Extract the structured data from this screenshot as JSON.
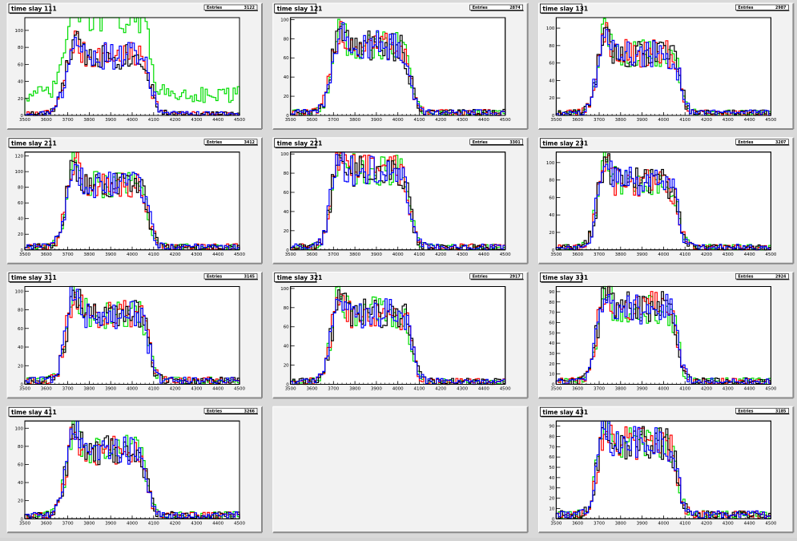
{
  "canvas": {
    "background": "#d9d9d9",
    "pad_color": "#f2f2f2",
    "grid_cols": 3,
    "grid_rows": 4
  },
  "series_colors": [
    "#ff0000",
    "#00dd00",
    "#000000",
    "#0000ff"
  ],
  "stats_label": "Entries",
  "chart_data": [
    {
      "type": "histogram",
      "title": "time slay 111",
      "entries": "3122",
      "xlim": [
        3500,
        4500
      ],
      "ylim": [
        0,
        115
      ],
      "xticks": [
        3500,
        3600,
        3700,
        3800,
        3900,
        4000,
        4100,
        4200,
        4300,
        4400,
        4500
      ],
      "yticks": [
        0,
        20,
        40,
        60,
        80,
        100
      ],
      "shape": {
        "rise": 3680,
        "riseW": 70,
        "fall": 4090,
        "fallW": 60,
        "peak": 92,
        "lvl": 68,
        "tail": 2,
        "green_bg": 22,
        "green_boost": 1.35
      }
    },
    {
      "type": "histogram",
      "title": "time slay 121",
      "entries": "2874",
      "xlim": [
        3500,
        4500
      ],
      "ylim": [
        0,
        102
      ],
      "xticks": [
        3500,
        3600,
        3700,
        3800,
        3900,
        4000,
        4100,
        4200,
        4300,
        4400,
        4500
      ],
      "yticks": [
        0,
        20,
        40,
        60,
        80,
        100
      ],
      "shape": {
        "rise": 3680,
        "riseW": 60,
        "fall": 4060,
        "fallW": 60,
        "peak": 90,
        "lvl": 70,
        "tail": 3
      }
    },
    {
      "type": "histogram",
      "title": "time slay 131",
      "entries": "2987",
      "xlim": [
        3500,
        4500
      ],
      "ylim": [
        0,
        112
      ],
      "xticks": [
        3500,
        3600,
        3700,
        3800,
        3900,
        4000,
        4100,
        4200,
        4300,
        4400,
        4500
      ],
      "yticks": [
        0,
        20,
        40,
        60,
        80,
        100
      ],
      "shape": {
        "rise": 3680,
        "riseW": 60,
        "fall": 4080,
        "fallW": 60,
        "peak": 100,
        "lvl": 68,
        "tail": 3
      }
    },
    {
      "type": "histogram",
      "title": "time slay 211",
      "entries": "3412",
      "xlim": [
        3500,
        4500
      ],
      "ylim": [
        0,
        125
      ],
      "xticks": [
        3500,
        3600,
        3700,
        3800,
        3900,
        4000,
        4100,
        4200,
        4300,
        4400,
        4500
      ],
      "yticks": [
        0,
        20,
        40,
        60,
        80,
        100,
        120
      ],
      "shape": {
        "rise": 3680,
        "riseW": 60,
        "fall": 4080,
        "fallW": 60,
        "peak": 112,
        "lvl": 80,
        "tail": 4
      }
    },
    {
      "type": "histogram",
      "title": "time slay 221",
      "entries": "3301",
      "xlim": [
        3500,
        4500
      ],
      "ylim": [
        0,
        102
      ],
      "xticks": [
        3500,
        3600,
        3700,
        3800,
        3900,
        4000,
        4100,
        4200,
        4300,
        4400,
        4500
      ],
      "yticks": [
        0,
        20,
        40,
        60,
        80,
        100
      ],
      "shape": {
        "rise": 3680,
        "riseW": 60,
        "fall": 4060,
        "fallW": 60,
        "peak": 98,
        "lvl": 80,
        "tail": 3
      }
    },
    {
      "type": "histogram",
      "title": "time slay 231",
      "entries": "3207",
      "xlim": [
        3500,
        4500
      ],
      "ylim": [
        0,
        112
      ],
      "xticks": [
        3500,
        3600,
        3700,
        3800,
        3900,
        4000,
        4100,
        4200,
        4300,
        4400,
        4500
      ],
      "yticks": [
        0,
        20,
        40,
        60,
        80,
        100
      ],
      "shape": {
        "rise": 3680,
        "riseW": 60,
        "fall": 4070,
        "fallW": 60,
        "peak": 105,
        "lvl": 75,
        "tail": 3
      }
    },
    {
      "type": "histogram",
      "title": "time slay 311",
      "entries": "3145",
      "xlim": [
        3500,
        4500
      ],
      "ylim": [
        0,
        105
      ],
      "xticks": [
        3500,
        3600,
        3700,
        3800,
        3900,
        4000,
        4100,
        4200,
        4300,
        4400,
        4500
      ],
      "yticks": [
        0,
        20,
        40,
        60,
        80,
        100
      ],
      "shape": {
        "rise": 3680,
        "riseW": 60,
        "fall": 4080,
        "fallW": 60,
        "peak": 98,
        "lvl": 72,
        "tail": 4
      }
    },
    {
      "type": "histogram",
      "title": "time slay 321",
      "entries": "2917",
      "xlim": [
        3500,
        4500
      ],
      "ylim": [
        0,
        102
      ],
      "xticks": [
        3500,
        3600,
        3700,
        3800,
        3900,
        4000,
        4100,
        4200,
        4300,
        4400,
        4500
      ],
      "yticks": [
        0,
        20,
        40,
        60,
        80,
        100
      ],
      "shape": {
        "rise": 3680,
        "riseW": 60,
        "fall": 4070,
        "fallW": 60,
        "peak": 96,
        "lvl": 72,
        "tail": 3
      }
    },
    {
      "type": "histogram",
      "title": "time slay 331",
      "entries": "2924",
      "xlim": [
        3500,
        4500
      ],
      "ylim": [
        0,
        95
      ],
      "xticks": [
        3500,
        3600,
        3700,
        3800,
        3900,
        4000,
        4100,
        4200,
        4300,
        4400,
        4500
      ],
      "yticks": [
        0,
        10,
        20,
        30,
        40,
        50,
        60,
        70,
        80,
        90
      ],
      "shape": {
        "rise": 3680,
        "riseW": 60,
        "fall": 4070,
        "fallW": 60,
        "peak": 90,
        "lvl": 72,
        "tail": 3
      }
    },
    {
      "type": "histogram",
      "title": "time slay 411",
      "entries": "3266",
      "xlim": [
        3500,
        4500
      ],
      "ylim": [
        0,
        108
      ],
      "xticks": [
        3500,
        3600,
        3700,
        3800,
        3900,
        4000,
        4100,
        4200,
        4300,
        4400,
        4500
      ],
      "yticks": [
        0,
        20,
        40,
        60,
        80,
        100
      ],
      "shape": {
        "rise": 3680,
        "riseW": 60,
        "fall": 4070,
        "fallW": 60,
        "peak": 100,
        "lvl": 72,
        "tail": 4
      }
    },
    null,
    {
      "type": "histogram",
      "title": "time slay 431",
      "entries": "3185",
      "xlim": [
        3500,
        4500
      ],
      "ylim": [
        0,
        95
      ],
      "xticks": [
        3500,
        3600,
        3700,
        3800,
        3900,
        4000,
        4100,
        4200,
        4300,
        4400,
        4500
      ],
      "yticks": [
        0,
        10,
        20,
        30,
        40,
        50,
        60,
        70,
        80,
        90
      ],
      "shape": {
        "rise": 3680,
        "riseW": 60,
        "fall": 4070,
        "fallW": 60,
        "peak": 92,
        "lvl": 70,
        "tail": 4
      }
    }
  ]
}
